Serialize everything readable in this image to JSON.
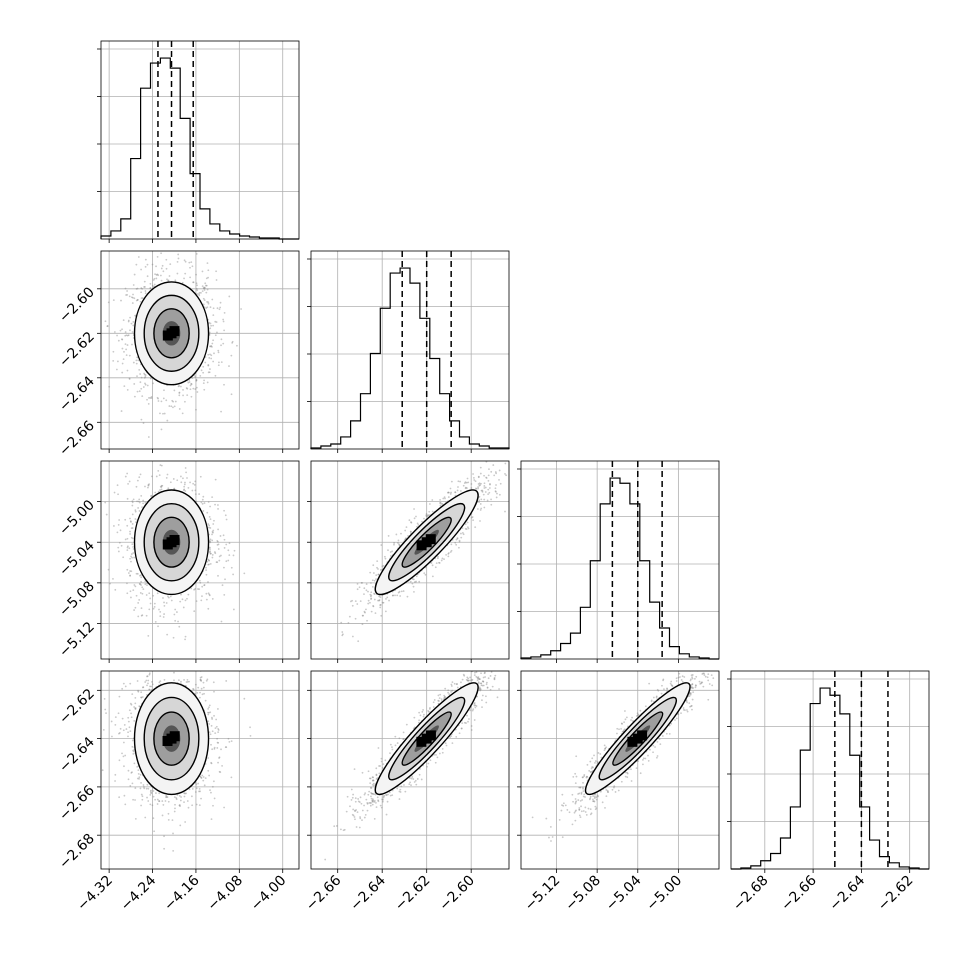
{
  "chart_data": {
    "type": "corner",
    "parameters": [
      {
        "name": "",
        "range": [
          -4.335,
          -3.97
        ],
        "ticks": [
          -4.32,
          -4.24,
          -4.16,
          -4.08,
          -4.0
        ],
        "tick_labels": [
          "−4.32",
          "−4.24",
          "−4.16",
          "−4.08",
          "−4.00"
        ],
        "median": -4.205,
        "quantiles": [
          -4.23,
          -4.205,
          -4.165
        ]
      },
      {
        "name": "",
        "range": [
          -2.672,
          -2.583
        ],
        "ticks": [
          -2.66,
          -2.64,
          -2.62,
          -2.6
        ],
        "tick_labels": [
          "−2.66",
          "−2.64",
          "−2.62",
          "−2.60"
        ],
        "median": -2.62,
        "quantiles": [
          -2.631,
          -2.62,
          -2.609
        ]
      },
      {
        "name": "",
        "range": [
          -5.155,
          -4.96
        ],
        "ticks": [
          -5.12,
          -5.08,
          -5.04,
          -5.0
        ],
        "tick_labels": [
          "−5.12",
          "−5.08",
          "−5.04",
          "−5.00"
        ],
        "median": -5.04,
        "quantiles": [
          -5.065,
          -5.04,
          -5.016
        ]
      },
      {
        "name": "",
        "range": [
          -2.694,
          -2.612
        ],
        "ticks": [
          -2.68,
          -2.66,
          -2.64,
          -2.62
        ],
        "tick_labels": [
          "−2.68",
          "−2.66",
          "−2.64",
          "−2.62"
        ],
        "median": -2.64,
        "quantiles": [
          -2.651,
          -2.64,
          -2.629
        ]
      }
    ],
    "histograms": [
      {
        "param": 0,
        "bins": 20,
        "counts": [
          3,
          8,
          20,
          80,
          150,
          175,
          180,
          170,
          120,
          65,
          30,
          15,
          8,
          5,
          3,
          2,
          1,
          1,
          0,
          0
        ]
      },
      {
        "param": 1,
        "bins": 20,
        "counts": [
          1,
          3,
          5,
          12,
          28,
          55,
          95,
          140,
          175,
          180,
          165,
          130,
          90,
          55,
          28,
          12,
          5,
          3,
          1,
          1
        ]
      },
      {
        "param": 2,
        "bins": 20,
        "counts": [
          1,
          2,
          4,
          8,
          15,
          25,
          50,
          95,
          150,
          175,
          170,
          150,
          95,
          55,
          30,
          12,
          5,
          2,
          1,
          0
        ]
      },
      {
        "param": 3,
        "bins": 20,
        "counts": [
          0,
          1,
          3,
          8,
          15,
          30,
          60,
          115,
          160,
          175,
          168,
          150,
          110,
          60,
          28,
          12,
          6,
          2,
          1,
          0
        ]
      }
    ],
    "pairs": [
      {
        "x": 0,
        "y": 1,
        "correlation": 0.0
      },
      {
        "x": 0,
        "y": 2,
        "correlation": 0.0
      },
      {
        "x": 1,
        "y": 2,
        "correlation": 0.9
      },
      {
        "x": 0,
        "y": 3,
        "correlation": 0.0
      },
      {
        "x": 1,
        "y": 3,
        "correlation": 0.92
      },
      {
        "x": 2,
        "y": 3,
        "correlation": 0.93
      }
    ],
    "grid": true,
    "quantile_style": "dashed"
  }
}
